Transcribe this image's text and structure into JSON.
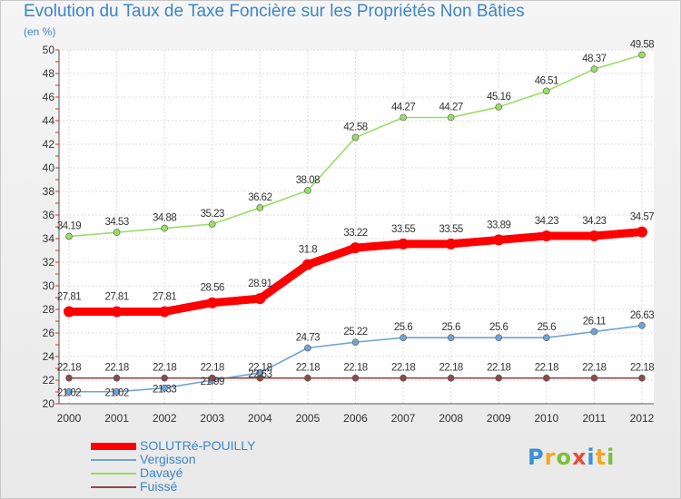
{
  "chart_data": {
    "type": "line",
    "title": "Evolution du Taux de Taxe Foncière sur les Propriétés Non Bâties",
    "unit_label": "(en %)",
    "x": [
      "2000",
      "2001",
      "2002",
      "2003",
      "2004",
      "2005",
      "2006",
      "2007",
      "2008",
      "2009",
      "2010",
      "2011",
      "2012"
    ],
    "ylim": [
      20,
      50
    ],
    "y_ticks": [
      "20",
      "22",
      "24",
      "26",
      "28",
      "30",
      "32",
      "34",
      "36",
      "38",
      "40",
      "42",
      "44",
      "46",
      "48",
      "50"
    ],
    "grid": true,
    "legend_position": "bottom-left",
    "series": [
      {
        "name": "SOLUTRé-POUILLY",
        "color": "#ff0000",
        "values": [
          27.81,
          27.81,
          27.81,
          28.56,
          28.91,
          31.8,
          33.22,
          33.55,
          33.55,
          33.89,
          34.23,
          34.23,
          34.57
        ],
        "labels": [
          "27.81",
          "27.81",
          "27.81",
          "28.56",
          "28.91",
          "31.8",
          "33.22",
          "33.55",
          "33.55",
          "33.89",
          "34.23",
          "34.23",
          "34.57"
        ]
      },
      {
        "name": "Vergisson",
        "color": "#6fa3d8",
        "values": [
          21.02,
          21.02,
          21.33,
          21.99,
          22.63,
          24.73,
          25.22,
          25.6,
          25.6,
          25.6,
          25.6,
          26.11,
          26.63
        ],
        "labels": [
          "21.02",
          "21.02",
          "21.33",
          "21.99",
          "22.63",
          "24.73",
          "25.22",
          "25.6",
          "25.6",
          "25.6",
          "25.6",
          "26.11",
          "26.63"
        ]
      },
      {
        "name": "Davayé",
        "color": "#99dd66",
        "values": [
          34.19,
          34.53,
          34.88,
          35.23,
          36.62,
          38.08,
          42.58,
          44.27,
          44.27,
          45.16,
          46.51,
          48.37,
          49.58
        ],
        "labels": [
          "34.19",
          "34.53",
          "34.88",
          "35.23",
          "36.62",
          "38.08",
          "42.58",
          "44.27",
          "44.27",
          "45.16",
          "46.51",
          "48.37",
          "49.58"
        ]
      },
      {
        "name": "Fuissé",
        "color": "#8b4a4a",
        "values": [
          22.18,
          22.18,
          22.18,
          22.18,
          22.18,
          22.18,
          22.18,
          22.18,
          22.18,
          22.18,
          22.18,
          22.18,
          22.18
        ],
        "labels": [
          "22.18",
          "22.18",
          "22.18",
          "22.18",
          "22.18",
          "22.18",
          "22.18",
          "22.18",
          "22.18",
          "22.18",
          "22.18",
          "22.18",
          "22.18"
        ]
      }
    ]
  },
  "brand": {
    "letters": [
      "P",
      "r",
      "o",
      "x",
      "i",
      "t",
      "i"
    ],
    "colors": [
      "#3a8fd8",
      "#f5a623",
      "#7bbf3a",
      "#e84c3d",
      "#3a8fd8",
      "#f5a623",
      "#7bbf3a"
    ]
  }
}
